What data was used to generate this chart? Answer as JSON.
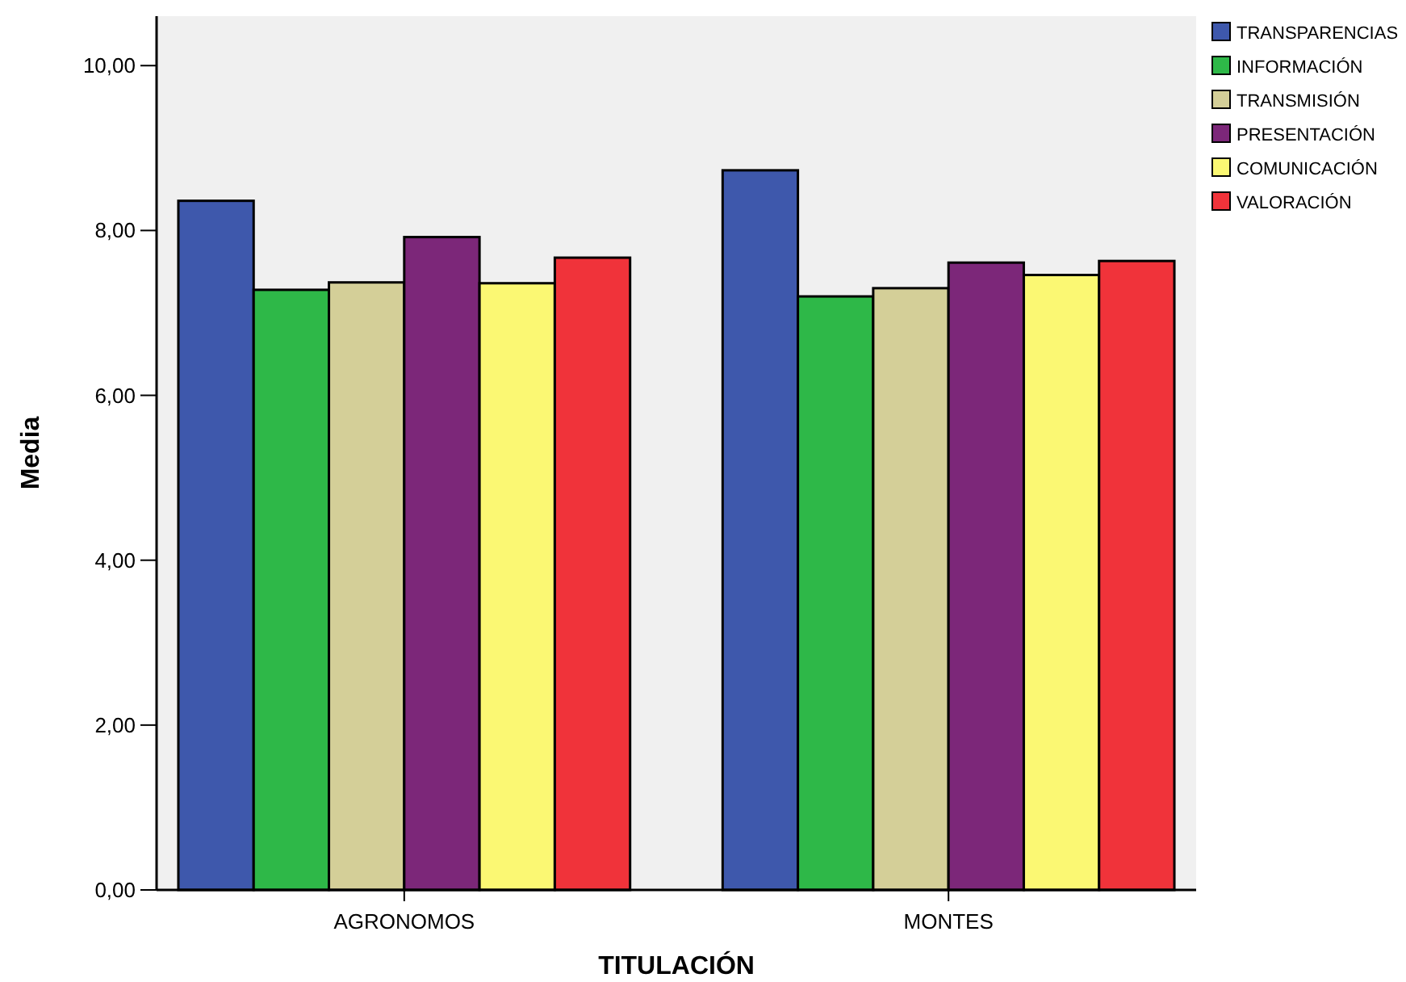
{
  "chart_data": {
    "type": "bar",
    "xlabel": "TITULACIÓN",
    "ylabel": "Media",
    "categories": [
      "AGRONOMOS",
      "MONTES"
    ],
    "series": [
      {
        "name": "TRANSPARENCIAS",
        "color": "#3e58ac",
        "values": [
          8.36,
          8.73
        ]
      },
      {
        "name": "INFORMACIÓN",
        "color": "#2eb848",
        "values": [
          7.28,
          7.2
        ]
      },
      {
        "name": "TRANSMISIÓN",
        "color": "#d4cf98",
        "values": [
          7.37,
          7.3
        ]
      },
      {
        "name": "PRESENTACIÓN",
        "color": "#7c2779",
        "values": [
          7.92,
          7.61
        ]
      },
      {
        "name": "COMUNICACIÓN",
        "color": "#fbf873",
        "values": [
          7.36,
          7.46
        ]
      },
      {
        "name": "VALORACIÓN",
        "color": "#f0333a",
        "values": [
          7.67,
          7.63
        ]
      }
    ],
    "ylim": [
      0,
      10.6
    ],
    "yticks": [
      {
        "value": 0,
        "label": "0,00"
      },
      {
        "value": 2,
        "label": "2,00"
      },
      {
        "value": 4,
        "label": "4,00"
      },
      {
        "value": 6,
        "label": "6,00"
      },
      {
        "value": 8,
        "label": "8,00"
      },
      {
        "value": 10,
        "label": "10,00"
      }
    ],
    "grid": false,
    "legend": "top right"
  }
}
